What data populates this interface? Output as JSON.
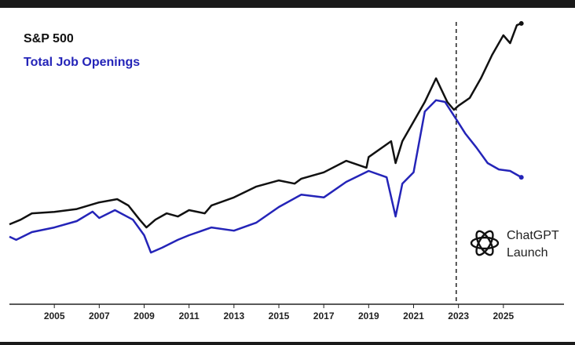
{
  "chart_data": {
    "type": "line",
    "xlim": [
      2003,
      2027.7
    ],
    "ylim": [
      0,
      100
    ],
    "xticks": [
      2005,
      2007,
      2009,
      2011,
      2013,
      2015,
      2017,
      2019,
      2021,
      2023,
      2025
    ],
    "series": [
      {
        "name": "S&P 500",
        "color": "#111111",
        "x": [
          2003.0,
          2003.5,
          2004,
          2005,
          2006,
          2007,
          2007.8,
          2008.3,
          2008.8,
          2009.1,
          2009.5,
          2010,
          2010.5,
          2011,
          2011.7,
          2012,
          2013,
          2014,
          2015,
          2015.7,
          2016,
          2017,
          2018,
          2018.9,
          2019,
          2020,
          2020.2,
          2020.5,
          2021,
          2021.5,
          2022,
          2022.5,
          2022.8,
          2023,
          2023.5,
          2024,
          2024.5,
          2025,
          2025.3,
          2025.6,
          2025.8
        ],
        "values": [
          27.7,
          29.3,
          31.5,
          32,
          33,
          35.3,
          36.4,
          34.2,
          29.3,
          26.6,
          29.3,
          31.5,
          30.4,
          32.6,
          31.5,
          34.2,
          37,
          40.8,
          42.9,
          41.8,
          43.5,
          45.7,
          49.7,
          47.3,
          51,
          56.5,
          48.9,
          56.5,
          63.3,
          70.1,
          78.3,
          70.1,
          67.4,
          68.8,
          71.5,
          78.3,
          86.4,
          93.2,
          90.5,
          96.7,
          97.3
        ]
      },
      {
        "name": "Total Job Openings",
        "color": "#2424b8",
        "x": [
          2003.0,
          2003.3,
          2004,
          2005,
          2006,
          2006.7,
          2007,
          2007.7,
          2008.5,
          2009,
          2009.3,
          2009.8,
          2010.5,
          2011,
          2012,
          2013,
          2014,
          2015,
          2016,
          2017,
          2018,
          2019,
          2019.8,
          2020.2,
          2020.5,
          2021,
          2021.5,
          2022,
          2022.4,
          2022.9,
          2023.3,
          2023.8,
          2024.3,
          2024.8,
          2025.3,
          2025.8
        ],
        "values": [
          23.4,
          22.3,
          25,
          26.6,
          28.8,
          32.1,
          29.9,
          32.6,
          29.3,
          23.9,
          17.9,
          19.6,
          22.3,
          23.9,
          26.6,
          25.5,
          28.3,
          33.7,
          38,
          37,
          42.4,
          46.2,
          44,
          30.4,
          41.8,
          45.7,
          66.8,
          70.7,
          70.1,
          64.1,
          59.2,
          54.3,
          48.9,
          46.7,
          46.2,
          44
        ]
      }
    ],
    "annotation": {
      "x": 2022.9,
      "text": [
        "ChatGPT",
        "Launch"
      ]
    }
  }
}
